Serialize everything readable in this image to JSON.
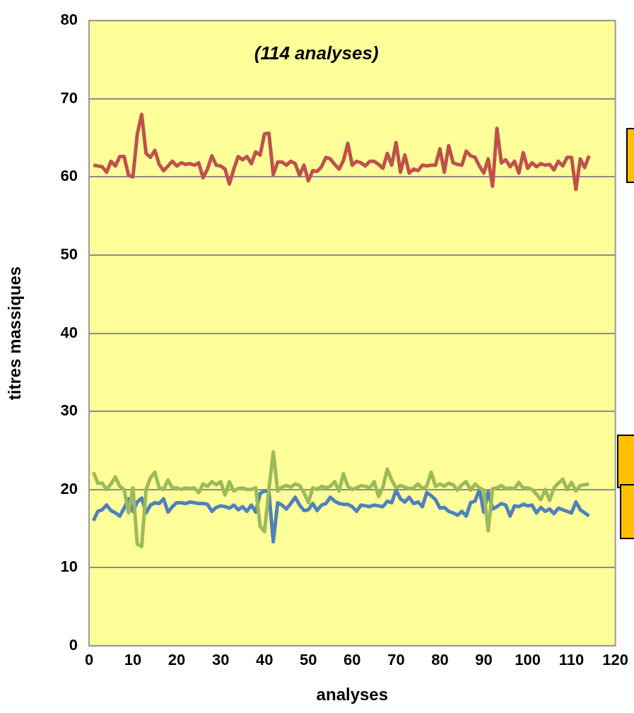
{
  "chart_data": {
    "type": "line",
    "title": "(114 analyses)",
    "xlabel": "analyses",
    "ylabel": "titres massiques",
    "x": [
      1,
      2,
      3,
      4,
      5,
      6,
      7,
      8,
      9,
      10,
      11,
      12,
      13,
      14,
      15,
      16,
      17,
      18,
      19,
      20,
      21,
      22,
      23,
      24,
      25,
      26,
      27,
      28,
      29,
      30,
      31,
      32,
      33,
      34,
      35,
      36,
      37,
      38,
      39,
      40,
      41,
      42,
      43,
      44,
      45,
      46,
      47,
      48,
      49,
      50,
      51,
      52,
      53,
      54,
      55,
      56,
      57,
      58,
      59,
      60,
      61,
      62,
      63,
      64,
      65,
      66,
      67,
      68,
      69,
      70,
      71,
      72,
      73,
      74,
      75,
      76,
      77,
      78,
      79,
      80,
      81,
      82,
      83,
      84,
      85,
      86,
      87,
      88,
      89,
      90,
      91,
      92,
      93,
      94,
      95,
      96,
      97,
      98,
      99,
      100,
      101,
      102,
      103,
      104,
      105,
      106,
      107,
      108,
      109,
      110,
      111,
      112,
      113,
      114
    ],
    "series": [
      {
        "color": "#c0504d",
        "values": [
          61.5,
          61.4,
          61.3,
          60.6,
          62,
          61.4,
          62.6,
          62.6,
          60.2,
          60,
          65.5,
          68,
          63,
          62.5,
          63.4,
          61.6,
          60.8,
          61.4,
          62,
          61.4,
          61.8,
          61.6,
          61.7,
          61.5,
          61.8,
          59.9,
          61,
          62.7,
          61.5,
          61.4,
          61,
          59.1,
          61,
          62.6,
          62.2,
          62.6,
          61.7,
          63.2,
          62.8,
          65.5,
          65.6,
          60.3,
          61.9,
          61.9,
          61.5,
          62,
          61.7,
          60.2,
          61.5,
          59.5,
          60.8,
          60.7,
          61.3,
          62.5,
          62.3,
          61.6,
          61,
          62.1,
          64.3,
          61.5,
          62,
          61.8,
          61.4,
          62,
          62,
          61.6,
          61.1,
          63,
          61.5,
          64.4,
          60.6,
          62.8,
          60.5,
          61,
          60.8,
          61.5,
          61.4,
          61.5,
          61.5,
          63.6,
          60.6,
          64,
          61.8,
          61.6,
          61.5,
          63.3,
          62.7,
          62.5,
          61.4,
          60.5,
          62.3,
          58.8,
          66.2,
          61.8,
          62.2,
          61.3,
          62,
          60.5,
          63.1,
          61.1,
          61.8,
          61.3,
          61.7,
          61.5,
          61.6,
          60.9,
          62,
          61.4,
          62.5,
          62.5,
          58.4,
          62.3,
          61.2,
          62.7
        ]
      },
      {
        "color": "#9bbb59",
        "values": [
          22.2,
          20.8,
          20.8,
          20,
          20.7,
          21.6,
          20.4,
          20,
          17,
          20.2,
          13,
          12.7,
          20,
          21.5,
          22.2,
          20.2,
          20,
          21.2,
          20.2,
          20.2,
          20,
          20.2,
          20.1,
          20.2,
          19.6,
          20.7,
          20.4,
          21,
          20.6,
          21,
          19.3,
          21,
          19.8,
          20.1,
          20.2,
          20,
          20,
          20.2,
          15.3,
          14.6,
          20,
          24.8,
          19.8,
          20.3,
          20.5,
          20.3,
          20.7,
          20.5,
          19.6,
          18.3,
          20.2,
          20,
          20.4,
          20.2,
          20.4,
          21,
          19.8,
          22,
          20.4,
          20,
          20.2,
          20.5,
          20.4,
          20.2,
          21,
          19.1,
          20.3,
          22.6,
          21.2,
          20.2,
          20.5,
          20.3,
          20.1,
          20.2,
          20.7,
          20.1,
          20.4,
          22.2,
          20.4,
          20.7,
          20.4,
          20.8,
          20.6,
          19.9,
          20.6,
          21,
          19.9,
          20.7,
          20.2,
          19.9,
          14.7,
          20.1,
          20.2,
          20.5,
          20.1,
          20.2,
          20.1,
          20.9,
          20.2,
          20.2,
          20,
          19.4,
          18.7,
          20,
          18.6,
          20.2,
          20.8,
          21.3,
          20,
          20.9,
          19.8,
          20.5,
          20.6,
          20.7
        ]
      },
      {
        "color": "#4f81bd",
        "values": [
          16,
          17.2,
          17.4,
          18,
          17.3,
          17,
          16.6,
          17.6,
          18.8,
          17.2,
          18.4,
          18.9,
          17,
          18,
          18.3,
          18.2,
          18.8,
          17.1,
          17.8,
          18.3,
          18.3,
          18.2,
          18.4,
          18.3,
          18.2,
          18.2,
          18.1,
          17.2,
          17.7,
          17.9,
          17.8,
          17.6,
          18,
          17.4,
          17.8,
          17.2,
          18,
          17.1,
          19.5,
          19.8,
          19.7,
          13.3,
          18.3,
          18,
          17.5,
          18.2,
          19,
          18,
          17.3,
          17.4,
          18.2,
          17.3,
          18,
          18.2,
          19,
          18.5,
          18.2,
          18.1,
          18.1,
          17.8,
          17.2,
          18,
          17.9,
          17.8,
          18,
          17.9,
          17.8,
          18.5,
          18.3,
          19.9,
          18.8,
          18.4,
          19,
          18.2,
          18.4,
          17.8,
          19.6,
          19.2,
          18.7,
          17.6,
          17.7,
          17.2,
          17,
          16.7,
          17.2,
          16.6,
          18.3,
          18.5,
          20,
          17.1,
          19.7,
          17.5,
          17.8,
          18.2,
          18,
          16.6,
          17.9,
          17.8,
          18.1,
          17.9,
          18,
          17,
          17.7,
          17.2,
          17.5,
          16.9,
          17.6,
          17.4,
          17.2,
          17,
          18.4,
          17.4,
          17,
          16.6
        ]
      }
    ],
    "xlim": [
      0,
      120
    ],
    "xticks": [
      0,
      10,
      20,
      30,
      40,
      50,
      60,
      70,
      80,
      90,
      100,
      110,
      120
    ],
    "ylim": [
      0,
      80
    ],
    "yticks": [
      0,
      10,
      20,
      30,
      40,
      50,
      60,
      70,
      80
    ],
    "grid": "y",
    "legend": false,
    "marker": "none",
    "line_style": "solid"
  }
}
